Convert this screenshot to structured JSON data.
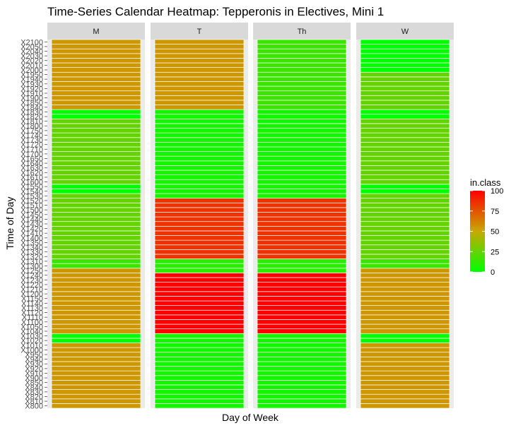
{
  "chart_data": {
    "type": "heatmap",
    "title": "Time-Series Calendar Heatmap: Tepperonis in Electives, Mini 1",
    "xlabel": "Day of Week",
    "ylabel": "Time of Day",
    "facets": [
      "M",
      "T",
      "Th",
      "W"
    ],
    "y_labels": [
      "X800",
      "X810",
      "X820",
      "X830",
      "X840",
      "X850",
      "X900",
      "X910",
      "X920",
      "X930",
      "X940",
      "X950",
      "X1000",
      "X1010",
      "X1020",
      "X1030",
      "X1040",
      "X1050",
      "X1100",
      "X1110",
      "X1120",
      "X1130",
      "X1140",
      "X1150",
      "X1200",
      "X1210",
      "X1220",
      "X1230",
      "X1240",
      "X1250",
      "X1300",
      "X1310",
      "X1320",
      "X1330",
      "X1340",
      "X1350",
      "X1400",
      "X1410",
      "X1420",
      "X1430",
      "X1440",
      "X1450",
      "X1500",
      "X1510",
      "X1520",
      "X1530",
      "X1540",
      "X1550",
      "X1600",
      "X1610",
      "X1620",
      "X1630",
      "X1640",
      "X1650",
      "X1700",
      "X1710",
      "X1720",
      "X1730",
      "X1740",
      "X1750",
      "X1800",
      "X1810",
      "X1820",
      "X1830",
      "X1840",
      "X1850",
      "X1900",
      "X1910",
      "X1920",
      "X1930",
      "X1940",
      "X1950",
      "X2000",
      "X2010",
      "X2020",
      "X2030",
      "X2040",
      "X2050",
      "X2100"
    ],
    "segments": {
      "M": [
        {
          "from": "X800",
          "to": "X1010",
          "value": 55
        },
        {
          "from": "X1020",
          "to": "X1030",
          "value": 0
        },
        {
          "from": "X1040",
          "to": "X1250",
          "value": 55
        },
        {
          "from": "X1300",
          "to": "X1310",
          "value": 15
        },
        {
          "from": "X1320",
          "to": "X1530",
          "value": 25
        },
        {
          "from": "X1540",
          "to": "X1550",
          "value": 0
        },
        {
          "from": "X1600",
          "to": "X1810",
          "value": 25
        },
        {
          "from": "X1820",
          "to": "X1830",
          "value": 0
        },
        {
          "from": "X1840",
          "to": "X2100",
          "value": 55
        }
      ],
      "T": [
        {
          "from": "X800",
          "to": "X1030",
          "value": 5
        },
        {
          "from": "X1040",
          "to": "X1240",
          "value": 100
        },
        {
          "from": "X1250",
          "to": "X1310",
          "value": 10
        },
        {
          "from": "X1320",
          "to": "X1520",
          "value": 85
        },
        {
          "from": "X1530",
          "to": "X1830",
          "value": 5
        },
        {
          "from": "X1840",
          "to": "X2100",
          "value": 55
        }
      ],
      "Th": [
        {
          "from": "X800",
          "to": "X1030",
          "value": 5
        },
        {
          "from": "X1040",
          "to": "X1240",
          "value": 100
        },
        {
          "from": "X1250",
          "to": "X1310",
          "value": 10
        },
        {
          "from": "X1320",
          "to": "X1520",
          "value": 85
        },
        {
          "from": "X1530",
          "to": "X1830",
          "value": 5
        },
        {
          "from": "X1840",
          "to": "X2100",
          "value": 15
        }
      ],
      "W": [
        {
          "from": "X800",
          "to": "X1010",
          "value": 55
        },
        {
          "from": "X1020",
          "to": "X1030",
          "value": 0
        },
        {
          "from": "X1040",
          "to": "X1250",
          "value": 55
        },
        {
          "from": "X1300",
          "to": "X1310",
          "value": 15
        },
        {
          "from": "X1320",
          "to": "X1530",
          "value": 25
        },
        {
          "from": "X1540",
          "to": "X1550",
          "value": 0
        },
        {
          "from": "X1600",
          "to": "X1810",
          "value": 25
        },
        {
          "from": "X1820",
          "to": "X1830",
          "value": 0
        },
        {
          "from": "X1840",
          "to": "X1950",
          "value": 25
        },
        {
          "from": "X2000",
          "to": "X2100",
          "value": 0
        }
      ]
    },
    "legend": {
      "title": "in.class",
      "range": [
        0,
        100
      ],
      "ticks": [
        "0",
        "25",
        "50",
        "75",
        "100"
      ],
      "colors": {
        "low": "#00ff00",
        "mid": "#c8a800",
        "high": "#ff0000"
      }
    },
    "legend_placement": "right",
    "grid": true
  }
}
